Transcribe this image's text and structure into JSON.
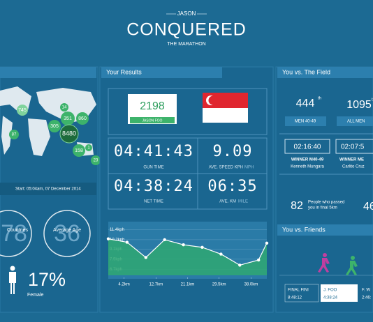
{
  "header": {
    "kicker": "JASON",
    "title": "CONQUERED",
    "subtitle": "THE MARATHON"
  },
  "world": {
    "bubbles": [
      "745",
      "14",
      "351",
      "860",
      "305",
      "8480",
      "87",
      "158",
      "1",
      "23"
    ],
    "start": "Start: 05:04am, 07 December 2014",
    "stats": [
      {
        "label": "Countries",
        "value": "78"
      },
      {
        "label": "Average Age",
        "value": "36"
      }
    ],
    "female_share": "17%",
    "female_label": "Female"
  },
  "results": {
    "title": "Your Results",
    "bib": "2198",
    "name": "JASON FOO",
    "metrics": [
      {
        "value": "04:41:43",
        "label": "GUN TIME"
      },
      {
        "value": "9.09",
        "label": "AVE. SPEED KPH",
        "unit": "MPH"
      },
      {
        "value": "04:38:24",
        "label": "NET TIME"
      },
      {
        "value": "06:35",
        "label": "AVE. KM",
        "unit": "MILE"
      }
    ],
    "pace_chart": {
      "type": "line",
      "color": "#2fa872",
      "x": [
        0,
        5,
        10,
        15,
        20,
        25,
        30,
        35,
        40,
        42.2
      ],
      "values": [
        10.3,
        9.9,
        8.1,
        10.2,
        9.6,
        9.3,
        8.5,
        7.2,
        7.8,
        9.8
      ],
      "xlim": [
        0,
        42.2
      ],
      "ylim": [
        6,
        12
      ],
      "xticks": [
        {
          "value": 4.2,
          "label": "4.2km"
        },
        {
          "value": 12.7,
          "label": "12.7km"
        },
        {
          "value": 21.1,
          "label": "21.1km"
        },
        {
          "value": 29.5,
          "label": "29.5km"
        },
        {
          "value": 38.0,
          "label": "38.0km"
        }
      ],
      "yticks": [
        {
          "value": 11.4,
          "label": "11.4kph"
        },
        {
          "value": 10.2,
          "label": "10.2kph"
        },
        {
          "value": 9.1,
          "label": "9.1kph"
        },
        {
          "value": 7.9,
          "label": "7.9kph"
        },
        {
          "value": 6.7,
          "label": "6.7kph"
        }
      ],
      "grid": true
    }
  },
  "field": {
    "title": "You vs. The Field",
    "ranks": [
      {
        "value": "444",
        "suffix": "th",
        "label": "MEN 40-49"
      },
      {
        "value": "1095",
        "suffix": "th",
        "label": "ALL MEN"
      }
    ],
    "winners": [
      {
        "time": "02:16:40",
        "label": "WINNER M40-49",
        "name": "Kenneth Mungara"
      },
      {
        "time": "02:07:5",
        "label": "WINNER ME",
        "name": "Carlito Cruz"
      }
    ],
    "passed": {
      "value": "82",
      "line1": "People who passed",
      "line2": "you in final 5km",
      "other": "46"
    }
  },
  "friends": {
    "title": "You vs. Friends",
    "entries": [
      {
        "name": "FINAL FINI",
        "time": "8:48:12"
      },
      {
        "name": "J. FOO",
        "time": "4:38:24"
      },
      {
        "name": "F. W",
        "time": "2:46:"
      }
    ]
  }
}
